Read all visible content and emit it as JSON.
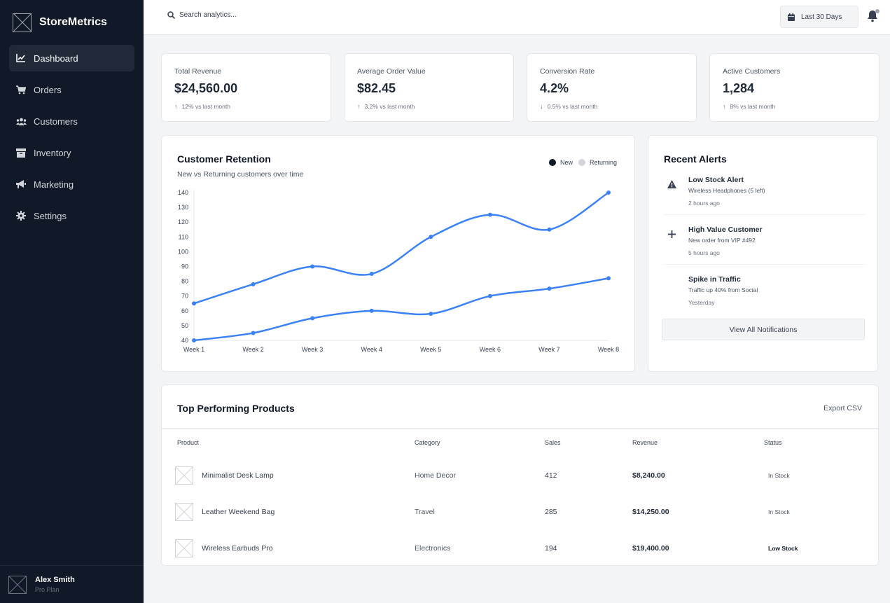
{
  "app": {
    "name": "StoreMetrics"
  },
  "sidebar": {
    "items": [
      {
        "label": "Dashboard",
        "icon": "chart-line-icon",
        "active": true
      },
      {
        "label": "Orders",
        "icon": "cart-icon",
        "active": false
      },
      {
        "label": "Customers",
        "icon": "users-icon",
        "active": false
      },
      {
        "label": "Inventory",
        "icon": "box-icon",
        "active": false
      },
      {
        "label": "Marketing",
        "icon": "megaphone-icon",
        "active": false
      },
      {
        "label": "Settings",
        "icon": "gear-icon",
        "active": false
      }
    ],
    "user": {
      "name": "Alex Smith",
      "plan": "Pro Plan"
    }
  },
  "topbar": {
    "search_placeholder": "Search analytics...",
    "date_range": "Last 30 Days"
  },
  "stats": [
    {
      "label": "Total Revenue",
      "value": "$24,560.00",
      "change": "12% vs last month",
      "direction": "up"
    },
    {
      "label": "Average Order Value",
      "value": "$82.45",
      "change": "3.2% vs last month",
      "direction": "up"
    },
    {
      "label": "Conversion Rate",
      "value": "4.2%",
      "change": "0.5% vs last month",
      "direction": "down"
    },
    {
      "label": "Active Customers",
      "value": "1,284",
      "change": "8% vs last month",
      "direction": "up"
    }
  ],
  "retention": {
    "title": "Customer Retention",
    "subtitle": "New vs Returning customers over time",
    "legend": {
      "new": "New",
      "returning": "Returning"
    }
  },
  "chart_data": {
    "type": "line",
    "x": [
      "Week 1",
      "Week 2",
      "Week 3",
      "Week 4",
      "Week 5",
      "Week 6",
      "Week 7",
      "Week 8"
    ],
    "series": [
      {
        "name": "New",
        "values": [
          65,
          78,
          90,
          85,
          110,
          125,
          115,
          140
        ],
        "color": "#3b82f6"
      },
      {
        "name": "Returning",
        "values": [
          40,
          45,
          55,
          60,
          58,
          70,
          75,
          82
        ],
        "color": "#3b82f6"
      }
    ],
    "yticks": [
      40,
      50,
      60,
      70,
      80,
      90,
      100,
      110,
      120,
      130,
      140
    ],
    "ylim": [
      40,
      140
    ],
    "legend_position": "top-right",
    "legend_colors": {
      "new": "#111827",
      "returning": "#d1d5db"
    }
  },
  "alerts": {
    "title": "Recent Alerts",
    "items": [
      {
        "title": "Low Stock Alert",
        "desc": "Wireless Headphones (5 left)",
        "time": "2 hours ago",
        "icon": "warning-icon"
      },
      {
        "title": "High Value Customer",
        "desc": "New order from VIP #492",
        "time": "5 hours ago",
        "icon": "plus-icon"
      },
      {
        "title": "Spike in Traffic",
        "desc": "Traffic up 40% from Social",
        "time": "Yesterday",
        "icon": ""
      }
    ],
    "view_all": "View All Notifications"
  },
  "products": {
    "title": "Top Performing Products",
    "export": "Export CSV",
    "headers": [
      "Product",
      "Category",
      "Sales",
      "Revenue",
      "Status"
    ],
    "rows": [
      {
        "name": "Minimalist Desk Lamp",
        "category": "Home Decor",
        "sales": "412",
        "revenue": "$8,240.00",
        "status": "In Stock"
      },
      {
        "name": "Leather Weekend Bag",
        "category": "Travel",
        "sales": "285",
        "revenue": "$14,250.00",
        "status": "In Stock"
      },
      {
        "name": "Wireless Earbuds Pro",
        "category": "Electronics",
        "sales": "194",
        "revenue": "$19,400.00",
        "status": "Low Stock"
      }
    ]
  }
}
